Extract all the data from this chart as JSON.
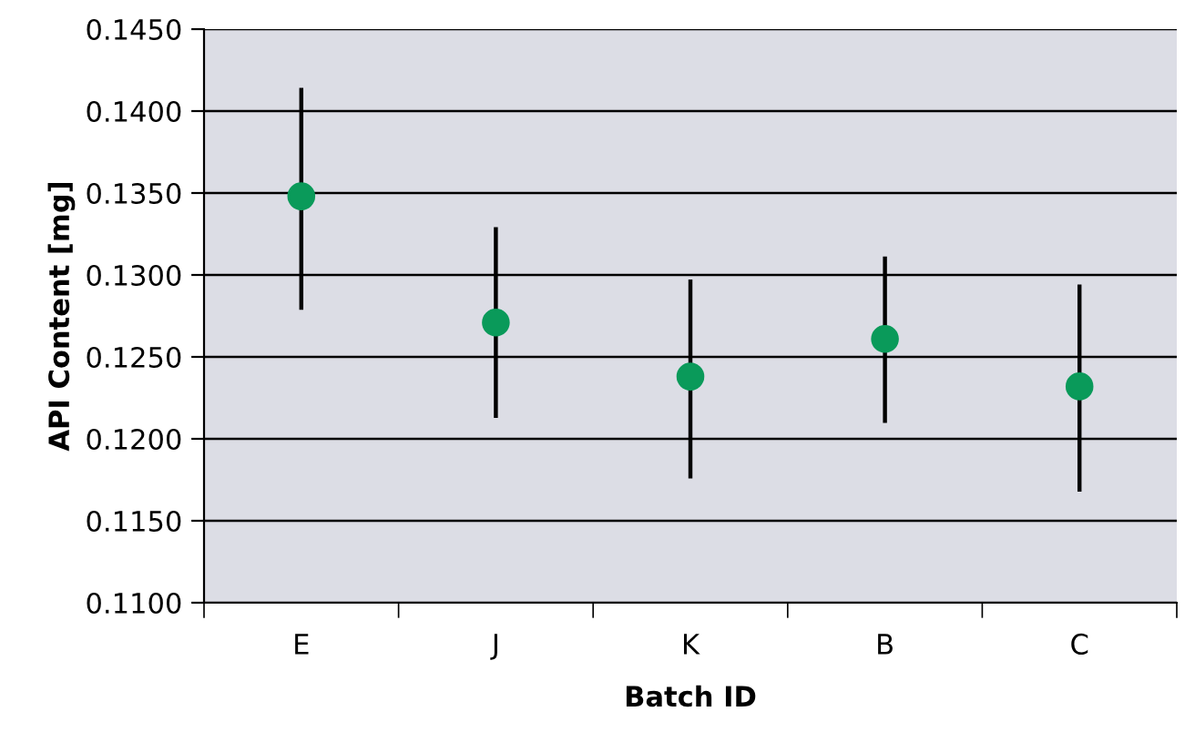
{
  "chart_data": {
    "type": "scatter",
    "xlabel": "Batch ID",
    "ylabel": "API Content [mg]",
    "categories": [
      "E",
      "J",
      "K",
      "B",
      "C"
    ],
    "values": [
      0.1348,
      0.1271,
      0.1238,
      0.1261,
      0.1232
    ],
    "errors": [
      [
        0.128,
        0.1413
      ],
      [
        0.1214,
        0.1328
      ],
      [
        0.1177,
        0.1296
      ],
      [
        0.1211,
        0.131
      ],
      [
        0.1169,
        0.1293
      ]
    ],
    "color": "#0a9a5a",
    "marker": "circle",
    "grid": "y",
    "ylim": [
      0.11,
      0.145
    ],
    "yticks": [
      {
        "value": 0.11,
        "label": "0.1100"
      },
      {
        "value": 0.115,
        "label": "0.1150"
      },
      {
        "value": 0.12,
        "label": "0.1200"
      },
      {
        "value": 0.125,
        "label": "0.1250"
      },
      {
        "value": 0.13,
        "label": "0.1300"
      },
      {
        "value": 0.135,
        "label": "0.1350"
      },
      {
        "value": 0.14,
        "label": "0.1400"
      },
      {
        "value": 0.145,
        "label": "0.1450"
      }
    ]
  }
}
